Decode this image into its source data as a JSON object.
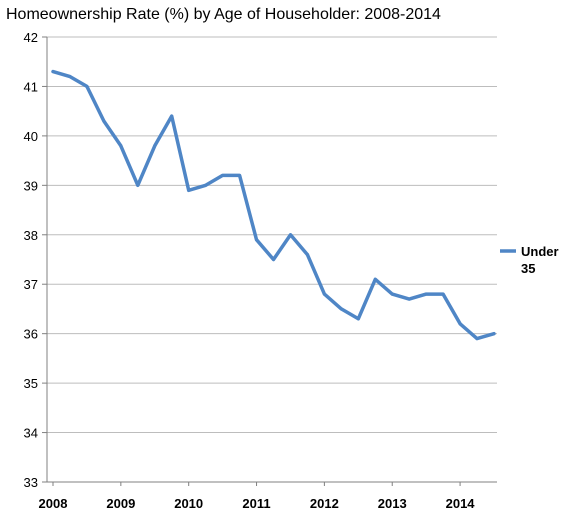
{
  "chart_data": {
    "type": "line",
    "title": "Homeownership Rate (%) by Age of Householder: 2008-2014",
    "xlabel": "",
    "ylabel": "",
    "ylim": [
      33,
      42
    ],
    "yticks": [
      33,
      34,
      35,
      36,
      37,
      38,
      39,
      40,
      41,
      42
    ],
    "xticks": [
      "2008",
      "2009",
      "2010",
      "2011",
      "2012",
      "2013",
      "2014"
    ],
    "grid": "horizontal",
    "legend_position": "right",
    "series": [
      {
        "name": "Under 35",
        "color": "#4F86C6",
        "values": [
          41.3,
          41.2,
          41.0,
          40.3,
          39.8,
          39.0,
          39.8,
          40.4,
          38.9,
          39.0,
          39.2,
          39.2,
          37.9,
          37.5,
          38.0,
          37.6,
          36.8,
          36.5,
          36.3,
          37.1,
          36.8,
          36.7,
          36.8,
          36.8,
          36.2,
          35.9,
          36.0
        ]
      }
    ]
  }
}
